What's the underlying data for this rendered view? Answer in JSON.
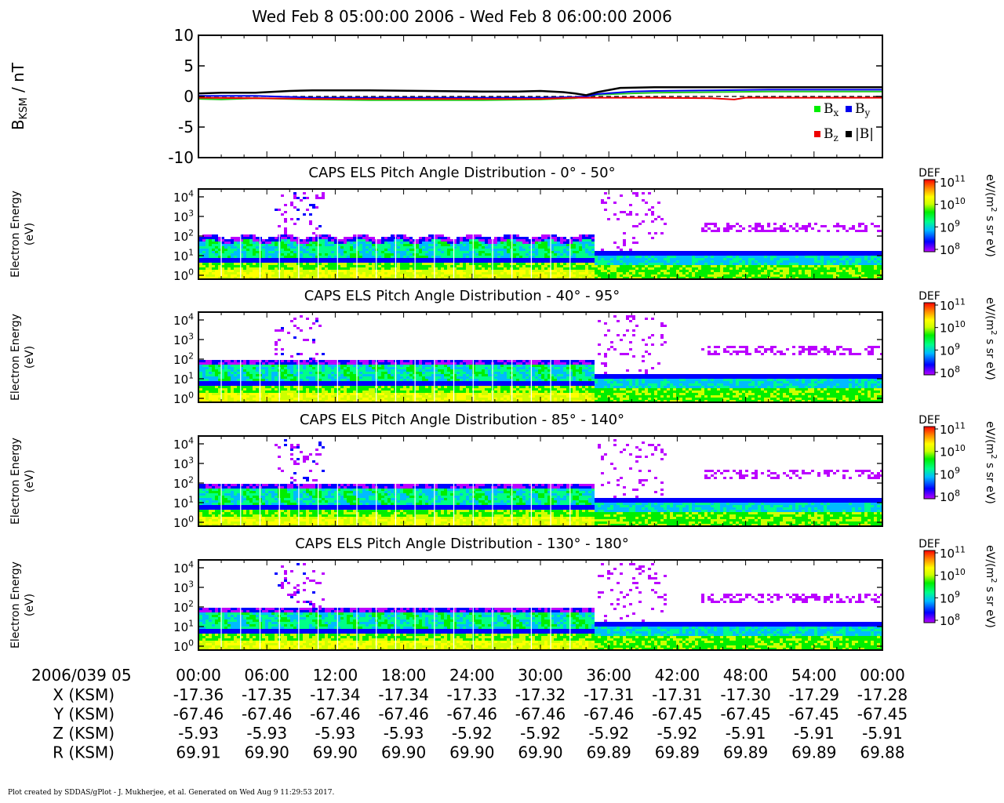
{
  "chart_data": {
    "type": "heatmap",
    "title": "Wed Feb 8 05:00:00 2006 - Wed Feb 8 06:00:00 2006",
    "mag_panel": {
      "ylabel_main": "B",
      "ylabel_sub": "KSM",
      "ylabel_unit": " / nT",
      "ylim": [
        -10,
        10
      ],
      "yticks": [
        "10",
        "5",
        "0",
        "-5",
        "-10"
      ],
      "ytick_values": [
        10,
        5,
        0,
        -5,
        -10
      ],
      "legend": [
        {
          "base": "B",
          "sub": "x",
          "color": "#00ee00"
        },
        {
          "base": "B",
          "sub": "y",
          "color": "#0000ee"
        },
        {
          "base": "B",
          "sub": "z",
          "color": "#ee0000"
        },
        {
          "base": "|B|",
          "sub": "",
          "color": "#000000"
        }
      ],
      "series": [
        {
          "name": "Bx",
          "color": "#22cc22",
          "x": [
            0,
            2,
            5,
            10,
            15,
            20,
            25,
            30,
            33,
            34,
            35,
            38,
            40,
            45,
            50,
            55,
            60
          ],
          "y": [
            -0.4,
            -0.5,
            -0.3,
            -0.5,
            -0.6,
            -0.6,
            -0.6,
            -0.5,
            -0.3,
            0,
            0.3,
            0.5,
            0.6,
            0.7,
            0.8,
            0.8,
            0.8
          ]
        },
        {
          "name": "By",
          "color": "#0000ee",
          "x": [
            0,
            5,
            10,
            15,
            20,
            25,
            30,
            33,
            34,
            35,
            38,
            40,
            45,
            50,
            55,
            60
          ],
          "y": [
            0.1,
            0.1,
            -0.2,
            -0.2,
            -0.2,
            -0.2,
            -0.2,
            -0.1,
            0,
            0.4,
            0.8,
            0.9,
            1.0,
            1.1,
            1.1,
            1.1
          ]
        },
        {
          "name": "Bz",
          "color": "#ee0000",
          "x": [
            0,
            5,
            10,
            15,
            20,
            25,
            30,
            33,
            35,
            40,
            45,
            47,
            48,
            50,
            55,
            60
          ],
          "y": [
            -0.2,
            -0.3,
            -0.4,
            -0.4,
            -0.4,
            -0.4,
            -0.4,
            -0.2,
            -0.2,
            -0.2,
            -0.3,
            -0.5,
            -0.2,
            -0.2,
            -0.2,
            -0.2
          ]
        },
        {
          "name": "|B|",
          "color": "#000000",
          "x": [
            0,
            2,
            5,
            8,
            10,
            15,
            20,
            25,
            28,
            30,
            32,
            33,
            34,
            35,
            37,
            40,
            45,
            50,
            55,
            60
          ],
          "y": [
            0.5,
            0.6,
            0.6,
            0.9,
            1.0,
            1.0,
            0.9,
            0.8,
            0.8,
            0.9,
            0.7,
            0.5,
            0.2,
            0.7,
            1.4,
            1.5,
            1.5,
            1.5,
            1.5,
            1.5
          ]
        }
      ]
    },
    "spectrogram_panels": [
      {
        "title": "CAPS ELS Pitch Angle Distribution - 0° - 50°"
      },
      {
        "title": "CAPS ELS Pitch Angle Distribution - 40° - 95°"
      },
      {
        "title": "CAPS ELS Pitch Angle Distribution - 85° - 140°"
      },
      {
        "title": "CAPS ELS Pitch Angle Distribution - 130° - 180°"
      }
    ],
    "spectrogram_ylabel": [
      "Electron Energy",
      "(eV)"
    ],
    "spectrogram_ylim_log10": [
      -0.2,
      4.4
    ],
    "energy_ticks": [
      {
        "base": "10",
        "exp": "4",
        "value": 4
      },
      {
        "base": "10",
        "exp": "3",
        "value": 3
      },
      {
        "base": "10",
        "exp": "2",
        "value": 2
      },
      {
        "base": "10",
        "exp": "1",
        "value": 1
      },
      {
        "base": "10",
        "exp": "0",
        "value": 0
      }
    ],
    "colorbar": {
      "label": "DEF",
      "unit_parts": [
        "eV/(m",
        "2",
        " s sr eV)"
      ],
      "ticks": [
        {
          "base": "10",
          "exp": "11"
        },
        {
          "base": "10",
          "exp": "10"
        },
        {
          "base": "10",
          "exp": "9"
        },
        {
          "base": "10",
          "exp": "8"
        }
      ],
      "range_log10": [
        8,
        11
      ],
      "colors": [
        "#bb00ff",
        "#0000ff",
        "#00bbff",
        "#00ff88",
        "#00ee00",
        "#ccff00",
        "#ffff00",
        "#ff8800",
        "#ff0000"
      ]
    },
    "time_axis": {
      "label": "2006/039 05",
      "x_minutes": [
        0,
        6,
        12,
        18,
        24,
        30,
        36,
        42,
        48,
        54,
        60
      ],
      "tick_labels": [
        "00:00",
        "06:00",
        "12:00",
        "18:00",
        "24:00",
        "30:00",
        "36:00",
        "42:00",
        "48:00",
        "54:00",
        "00:00"
      ]
    },
    "ephemeris": [
      {
        "label": "X (KSM)",
        "values": [
          "-17.36",
          "-17.35",
          "-17.34",
          "-17.34",
          "-17.33",
          "-17.32",
          "-17.31",
          "-17.31",
          "-17.30",
          "-17.29",
          "-17.28"
        ]
      },
      {
        "label": "Y (KSM)",
        "values": [
          "-67.46",
          "-67.46",
          "-67.46",
          "-67.46",
          "-67.46",
          "-67.46",
          "-67.46",
          "-67.45",
          "-67.45",
          "-67.45",
          "-67.45"
        ]
      },
      {
        "label": "Z (KSM)",
        "values": [
          "-5.93",
          "-5.93",
          "-5.93",
          "-5.93",
          "-5.92",
          "-5.92",
          "-5.92",
          "-5.92",
          "-5.91",
          "-5.91",
          "-5.91"
        ]
      },
      {
        "label": "R (KSM)",
        "values": [
          "69.91",
          "69.90",
          "69.90",
          "69.90",
          "69.90",
          "69.90",
          "69.89",
          "69.89",
          "69.89",
          "69.89",
          "69.88"
        ]
      }
    ]
  },
  "footer": "Plot created by SDDAS/gPlot - J. Mukherjee, et al.  Generated on Wed Aug 9 11:29:53 2017."
}
